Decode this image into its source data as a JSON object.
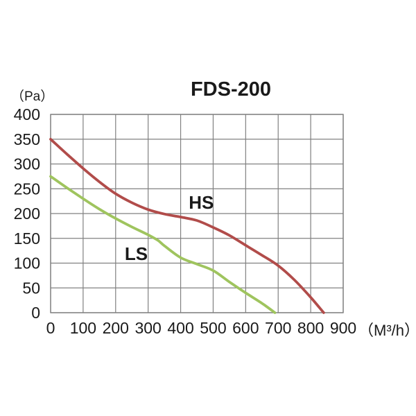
{
  "chart_data": {
    "type": "line",
    "title": "FDS-200",
    "xlabel": "（M³/h）",
    "ylabel": "（Pa）",
    "xlim": [
      0,
      900
    ],
    "ylim": [
      0,
      400
    ],
    "x_ticks": [
      0,
      100,
      200,
      300,
      400,
      500,
      600,
      700,
      800,
      900
    ],
    "y_ticks": [
      0,
      50,
      100,
      150,
      200,
      250,
      300,
      350,
      400
    ],
    "grid": true,
    "grid_color": "#808080",
    "text_color": "#1a1a1a",
    "background_color": "#ffffff",
    "legend_position": "inline-labels",
    "series": [
      {
        "name": "HS",
        "color": "#b14c4a",
        "label_at": {
          "x": 425,
          "y": 210
        },
        "points": [
          [
            0,
            350
          ],
          [
            50,
            320
          ],
          [
            100,
            291
          ],
          [
            150,
            264
          ],
          [
            200,
            240
          ],
          [
            250,
            222
          ],
          [
            300,
            208
          ],
          [
            350,
            199
          ],
          [
            400,
            193
          ],
          [
            450,
            186
          ],
          [
            500,
            172
          ],
          [
            550,
            156
          ],
          [
            600,
            136
          ],
          [
            650,
            116
          ],
          [
            700,
            95
          ],
          [
            750,
            66
          ],
          [
            800,
            31
          ],
          [
            840,
            0
          ]
        ]
      },
      {
        "name": "LS",
        "color": "#9fc45e",
        "label_at": {
          "x": 228,
          "y": 106
        },
        "points": [
          [
            0,
            275
          ],
          [
            50,
            252
          ],
          [
            100,
            230
          ],
          [
            150,
            209
          ],
          [
            200,
            190
          ],
          [
            250,
            173
          ],
          [
            300,
            157
          ],
          [
            330,
            146
          ],
          [
            350,
            135
          ],
          [
            400,
            111
          ],
          [
            450,
            98
          ],
          [
            500,
            85
          ],
          [
            550,
            62
          ],
          [
            600,
            40
          ],
          [
            650,
            19
          ],
          [
            690,
            0
          ]
        ]
      }
    ]
  }
}
